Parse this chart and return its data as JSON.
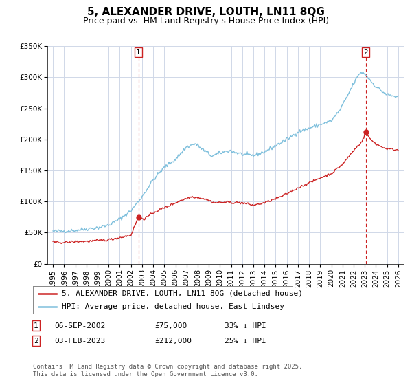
{
  "title": "5, ALEXANDER DRIVE, LOUTH, LN11 8QG",
  "subtitle": "Price paid vs. HM Land Registry's House Price Index (HPI)",
  "ylim": [
    0,
    350000
  ],
  "yticks": [
    0,
    50000,
    100000,
    150000,
    200000,
    250000,
    300000,
    350000
  ],
  "ytick_labels": [
    "£0",
    "£50K",
    "£100K",
    "£150K",
    "£200K",
    "£250K",
    "£300K",
    "£350K"
  ],
  "xlim": [
    1994.5,
    2026.5
  ],
  "xticks": [
    1995,
    1996,
    1997,
    1998,
    1999,
    2000,
    2001,
    2002,
    2003,
    2004,
    2005,
    2006,
    2007,
    2008,
    2009,
    2010,
    2011,
    2012,
    2013,
    2014,
    2015,
    2016,
    2017,
    2018,
    2019,
    2020,
    2021,
    2022,
    2023,
    2024,
    2025,
    2026
  ],
  "hpi_color": "#7dbfdc",
  "price_color": "#cc2222",
  "marker1_x": 2002.67,
  "marker1_y": 75000,
  "marker1_label": "1",
  "marker2_x": 2023.08,
  "marker2_y": 212000,
  "marker2_label": "2",
  "transaction1": [
    "1",
    "06-SEP-2002",
    "£75,000",
    "33% ↓ HPI"
  ],
  "transaction2": [
    "2",
    "03-FEB-2023",
    "£212,000",
    "25% ↓ HPI"
  ],
  "legend_line1": "5, ALEXANDER DRIVE, LOUTH, LN11 8QG (detached house)",
  "legend_line2": "HPI: Average price, detached house, East Lindsey",
  "footer": "Contains HM Land Registry data © Crown copyright and database right 2025.\nThis data is licensed under the Open Government Licence v3.0.",
  "bg_color": "#ffffff",
  "grid_color": "#d0d8e8",
  "title_fontsize": 11,
  "subtitle_fontsize": 9,
  "tick_fontsize": 7.5,
  "legend_fontsize": 8
}
